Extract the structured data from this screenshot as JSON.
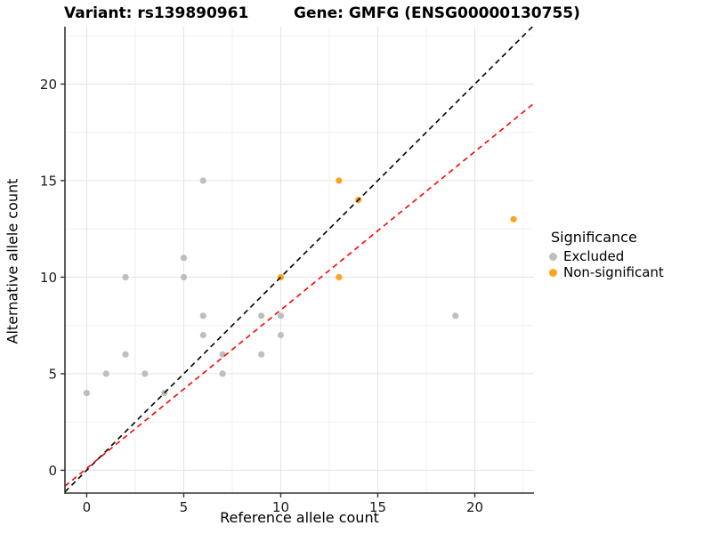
{
  "titles": {
    "variant": "Variant: rs139890961",
    "gene": "Gene: GMFG (ENSG00000130755)"
  },
  "chart_data": {
    "type": "scatter",
    "title_left": "Variant: rs139890961",
    "title_right": "Gene: GMFG (ENSG00000130755)",
    "xlabel": "Reference allele count",
    "ylabel": "Alternative allele count",
    "xlim": [
      -1.12,
      23.05
    ],
    "ylim": [
      -1.18,
      22.97
    ],
    "x_ticks": [
      0,
      5,
      10,
      15,
      20
    ],
    "y_ticks": [
      0,
      5,
      10,
      15,
      20
    ],
    "x_minor": [
      2.5,
      7.5,
      12.5,
      17.5,
      22.5
    ],
    "y_minor": [
      2.5,
      7.5,
      12.5,
      17.5,
      22.5
    ],
    "grid": "major+minor",
    "legend_position": "right",
    "legend": {
      "title": "Significance",
      "items": [
        {
          "label": "Excluded",
          "color": "#BEBEBE"
        },
        {
          "label": "Non-significant",
          "color": "#FFA41E"
        }
      ]
    },
    "series": [
      {
        "name": "Excluded",
        "color": "#BEBEBE",
        "points": [
          [
            0,
            4
          ],
          [
            1,
            5
          ],
          [
            2,
            6
          ],
          [
            2,
            10
          ],
          [
            3,
            5
          ],
          [
            4,
            4
          ],
          [
            5,
            10
          ],
          [
            5,
            11
          ],
          [
            6,
            7
          ],
          [
            6,
            8
          ],
          [
            6,
            15
          ],
          [
            7,
            5
          ],
          [
            7,
            6
          ],
          [
            9,
            6
          ],
          [
            9,
            8
          ],
          [
            10,
            7
          ],
          [
            10,
            8
          ],
          [
            19,
            8
          ]
        ]
      },
      {
        "name": "Non-significant",
        "color": "#FFA41E",
        "points": [
          [
            10,
            10
          ],
          [
            13,
            10
          ],
          [
            13,
            15
          ],
          [
            14,
            14
          ],
          [
            22,
            13
          ]
        ]
      }
    ],
    "lines": [
      {
        "name": "identity-line",
        "style": "dashed",
        "color": "#000000",
        "slope": 1,
        "intercept": 0
      },
      {
        "name": "fit-line",
        "style": "dashed",
        "color": "#FF0000",
        "slope": 0.82,
        "intercept": 0.1
      }
    ],
    "colors": {
      "grid_major": "#E3E3E3",
      "grid_minor": "#F0F0F0",
      "axis": "#333333",
      "tick_text": "#1A1A1A"
    }
  }
}
